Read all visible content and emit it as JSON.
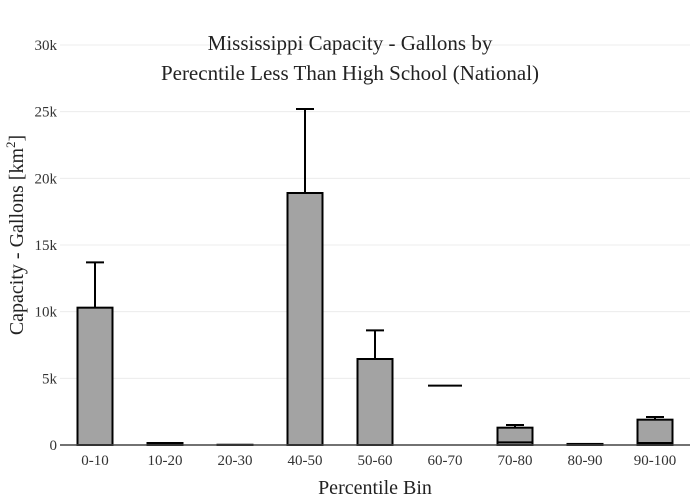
{
  "chart_data": {
    "type": "bar",
    "title_lines": [
      "Mississippi Capacity - Gallons by",
      "Perecntile Less Than High School (National)"
    ],
    "xlabel": "Percentile Bin",
    "ylabel_main": "Capacity - Gallons  [km",
    "ylabel_sup": "2",
    "ylabel_end": "]",
    "categories": [
      "0-10",
      "10-20",
      "20-30",
      "40-50",
      "50-60",
      "60-70",
      "70-80",
      "80-90",
      "90-100"
    ],
    "values": [
      10300,
      150,
      20,
      18900,
      6450,
      0,
      1300,
      80,
      1900
    ],
    "error_upper": [
      3400,
      0,
      0,
      6300,
      2150,
      4450,
      200,
      0,
      200
    ],
    "inner_lines": [
      null,
      null,
      null,
      null,
      null,
      null,
      200,
      null,
      150
    ],
    "ylim": [
      0,
      30000
    ],
    "yticks": [
      0,
      5000,
      10000,
      15000,
      20000,
      25000,
      30000
    ],
    "ytick_labels": [
      "0",
      "5k",
      "10k",
      "15k",
      "20k",
      "25k",
      "30k"
    ],
    "grid": true,
    "bar_color": "#a3a3a3",
    "outline_color": "#000000"
  }
}
